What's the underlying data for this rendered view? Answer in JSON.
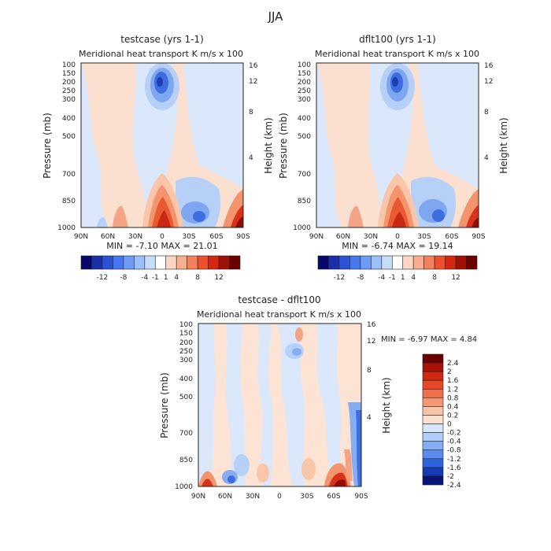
{
  "figure": {
    "title": "JJA"
  },
  "chart_data": [
    {
      "type": "heatmap",
      "id": "testcase",
      "title": "testcase (yrs 1-1)",
      "subtitle": "Meridional heat transport",
      "units": "K m/s x 100",
      "xlabel": "",
      "ylabel": "Pressure (mb)",
      "ylabel_right": "Height (km)",
      "x_ticks": [
        "90N",
        "60N",
        "30N",
        "0",
        "30S",
        "60S",
        "90S"
      ],
      "y_ticks": [
        "100",
        "150",
        "200",
        "250",
        "300",
        "400",
        "500",
        "700",
        "850",
        "1000"
      ],
      "y_right_ticks": [
        "16",
        "12",
        "8",
        "4"
      ],
      "stats": "MIN = -7.10   MAX = 21.01",
      "colorbar": [
        "-12",
        "-8",
        "-4",
        "-1",
        "1",
        "4",
        "8",
        "12"
      ],
      "features": [
        {
          "lat": 0,
          "p": 200,
          "value": -7.1
        },
        {
          "lat": 0,
          "p": 1000,
          "value": 21.01
        },
        {
          "lat": 30,
          "p": 900,
          "value": 4
        },
        {
          "lat": -30,
          "p": 900,
          "value": -4
        },
        {
          "lat": -85,
          "p": 950,
          "value": 12
        }
      ]
    },
    {
      "type": "heatmap",
      "id": "dflt100",
      "title": "dflt100 (yrs 1-1)",
      "subtitle": "Meridional heat transport",
      "units": "K m/s x 100",
      "xlabel": "",
      "ylabel": "Pressure (mb)",
      "ylabel_right": "Height (km)",
      "x_ticks": [
        "90N",
        "60N",
        "30N",
        "0",
        "30S",
        "60S",
        "90S"
      ],
      "y_ticks": [
        "100",
        "150",
        "200",
        "250",
        "300",
        "400",
        "500",
        "700",
        "850",
        "1000"
      ],
      "y_right_ticks": [
        "16",
        "12",
        "8",
        "4"
      ],
      "stats": "MIN = -6.74   MAX = 19.14",
      "colorbar": [
        "-12",
        "-8",
        "-4",
        "-1",
        "1",
        "4",
        "8",
        "12"
      ],
      "features": [
        {
          "lat": 0,
          "p": 200,
          "value": -6.74
        },
        {
          "lat": 0,
          "p": 1000,
          "value": 19.14
        },
        {
          "lat": 30,
          "p": 900,
          "value": 4
        },
        {
          "lat": -30,
          "p": 900,
          "value": -4
        },
        {
          "lat": -85,
          "p": 950,
          "value": 12
        }
      ]
    },
    {
      "type": "heatmap",
      "id": "difference",
      "title": "testcase - dflt100",
      "subtitle": "Meridional heat transport",
      "units": "K m/s x 100",
      "xlabel": "",
      "ylabel": "Pressure (mb)",
      "ylabel_right": "Height (km)",
      "x_ticks": [
        "90N",
        "60N",
        "30N",
        "0",
        "30S",
        "60S",
        "90S"
      ],
      "y_ticks": [
        "100",
        "150",
        "200",
        "250",
        "300",
        "400",
        "500",
        "700",
        "850",
        "1000"
      ],
      "y_right_ticks": [
        "16",
        "12",
        "8",
        "4"
      ],
      "stats": "MIN =   -6.97   MAX =    4.84",
      "colorbar": [
        "2.4",
        "2",
        "1.6",
        "1.2",
        "0.8",
        "0.4",
        "0.2",
        "0",
        "-0.2",
        "-0.4",
        "-0.8",
        "-1.2",
        "-1.6",
        "-2",
        "-2.4"
      ],
      "features": [
        {
          "lat": -70,
          "p": 980,
          "value": 4.84
        },
        {
          "lat": 75,
          "p": 990,
          "value": 2.0
        },
        {
          "lat": -85,
          "p": 600,
          "value": -6.97
        },
        {
          "lat": 50,
          "p": 980,
          "value": -1.6
        }
      ]
    }
  ],
  "colors": {
    "diverging_12": [
      "#08086b",
      "#1a2fa8",
      "#2c52d6",
      "#4777ef",
      "#6d9cf8",
      "#9cc0fb",
      "#c7dcfb",
      "#ffffff",
      "#fcd6c2",
      "#f9ae8e",
      "#f5805c",
      "#ee4f2c",
      "#d52612",
      "#a01006",
      "#6b0000"
    ],
    "diverging_15": [
      "#6b0000",
      "#a81008",
      "#d02612",
      "#e84727",
      "#f06e4b",
      "#f49874",
      "#f9c3a7",
      "#fde0d0",
      "#d7e6fb",
      "#b1cdf8",
      "#85adf3",
      "#5a8aec",
      "#2f62dd",
      "#1639b4",
      "#0a1474"
    ]
  }
}
